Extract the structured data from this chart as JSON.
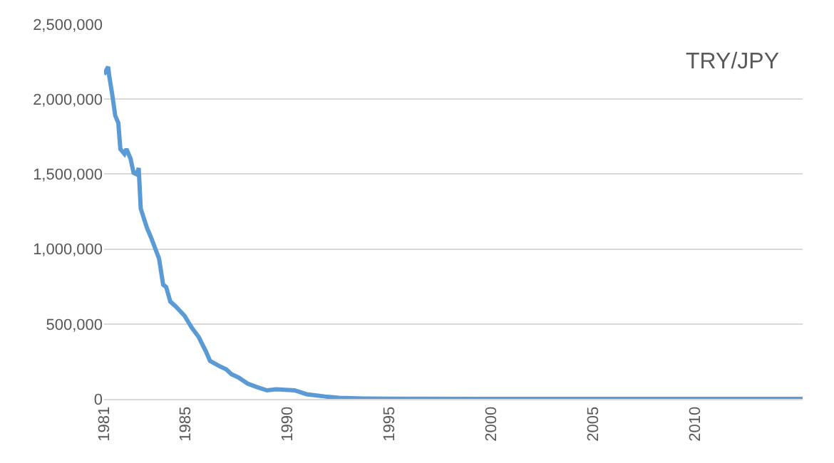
{
  "chart_data": {
    "type": "line",
    "title": "TRY/JPY",
    "x": [
      1981.0,
      1981.2,
      1981.25,
      1981.4,
      1981.55,
      1981.7,
      1981.8,
      1982.0,
      1982.1,
      1982.3,
      1982.45,
      1982.6,
      1982.7,
      1982.8,
      1983.1,
      1983.3,
      1983.7,
      1983.9,
      1984.05,
      1984.25,
      1984.5,
      1984.95,
      1985.3,
      1985.65,
      1986.0,
      1986.2,
      1986.7,
      1987.0,
      1987.25,
      1987.6,
      1988.05,
      1988.5,
      1989.0,
      1989.45,
      1990.35,
      1990.95,
      1991.85,
      1992.55,
      1993.9,
      1995,
      2000,
      2005,
      2010,
      2015.3
    ],
    "series": [
      {
        "color": "#5b9bd5",
        "values": [
          2165000,
          2216000,
          2159000,
          2032000,
          1889000,
          1841000,
          1667000,
          1635000,
          1667000,
          1603000,
          1508000,
          1498000,
          1540000,
          1270000,
          1143000,
          1079000,
          936000,
          762000,
          746000,
          650000,
          619000,
          555000,
          476000,
          412000,
          317000,
          254000,
          216000,
          197000,
          165000,
          143000,
          102000,
          79000,
          57000,
          64000,
          57000,
          31000,
          16000,
          7000,
          2000,
          1000,
          100,
          60,
          60,
          60
        ]
      }
    ],
    "xlim": [
      1981,
      2015.3
    ],
    "xticks": [
      1981,
      1985,
      1990,
      1995,
      2000,
      2005,
      2010
    ],
    "ylim": [
      0,
      2500000
    ],
    "yticks": [
      {
        "value": 0,
        "label": "0"
      },
      {
        "value": 500000,
        "label": "500,000"
      },
      {
        "value": 1000000,
        "label": "1,000,000"
      },
      {
        "value": 1500000,
        "label": "1,500,000"
      },
      {
        "value": 2000000,
        "label": "2,000,000"
      },
      {
        "value": 2500000,
        "label": "2,500,000"
      }
    ],
    "grid": "y",
    "legend": false,
    "marker": "none",
    "line_style": "solid"
  }
}
